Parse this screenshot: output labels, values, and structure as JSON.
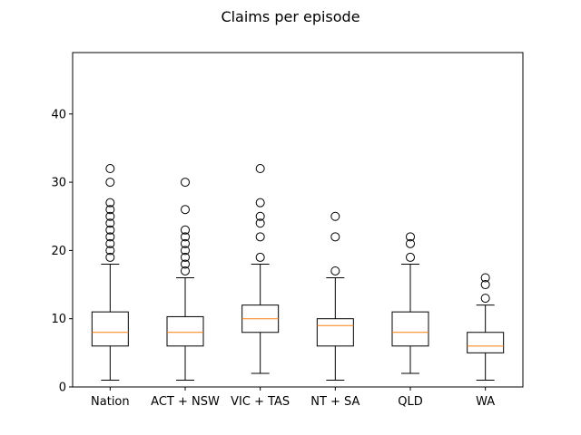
{
  "chart_data": {
    "type": "boxplot",
    "title": "Claims per episode",
    "xlabel": "",
    "ylabel": "",
    "ylim": [
      0,
      49
    ],
    "yticks": [
      0,
      10,
      20,
      30,
      40
    ],
    "grid": false,
    "colors": {
      "box": "#000000",
      "median": "#ff7f0e",
      "flier": "#000000"
    },
    "categories": [
      "Nation",
      "ACT + NSW",
      "VIC + TAS",
      "NT + SA",
      "QLD",
      "WA"
    ],
    "boxes": [
      {
        "whisker_low": 1,
        "q1": 6,
        "median": 8,
        "q3": 11,
        "whisker_high": 18,
        "outliers": [
          19,
          20,
          21,
          22,
          23,
          24,
          25,
          26,
          27,
          30,
          32
        ]
      },
      {
        "whisker_low": 1,
        "q1": 6,
        "median": 8,
        "q3": 10.3,
        "whisker_high": 16,
        "outliers": [
          17,
          18,
          19,
          20,
          21,
          22,
          23,
          26,
          30
        ]
      },
      {
        "whisker_low": 2,
        "q1": 8,
        "median": 10,
        "q3": 12,
        "whisker_high": 18,
        "outliers": [
          19,
          22,
          24,
          25,
          27,
          32
        ]
      },
      {
        "whisker_low": 1,
        "q1": 6,
        "median": 9,
        "q3": 10,
        "whisker_high": 16,
        "outliers": [
          17,
          22,
          25
        ]
      },
      {
        "whisker_low": 2,
        "q1": 6,
        "median": 8,
        "q3": 11,
        "whisker_high": 18,
        "outliers": [
          19,
          21,
          22
        ]
      },
      {
        "whisker_low": 1,
        "q1": 5,
        "median": 6,
        "q3": 8,
        "whisker_high": 12,
        "outliers": [
          13,
          15,
          16
        ]
      }
    ]
  }
}
